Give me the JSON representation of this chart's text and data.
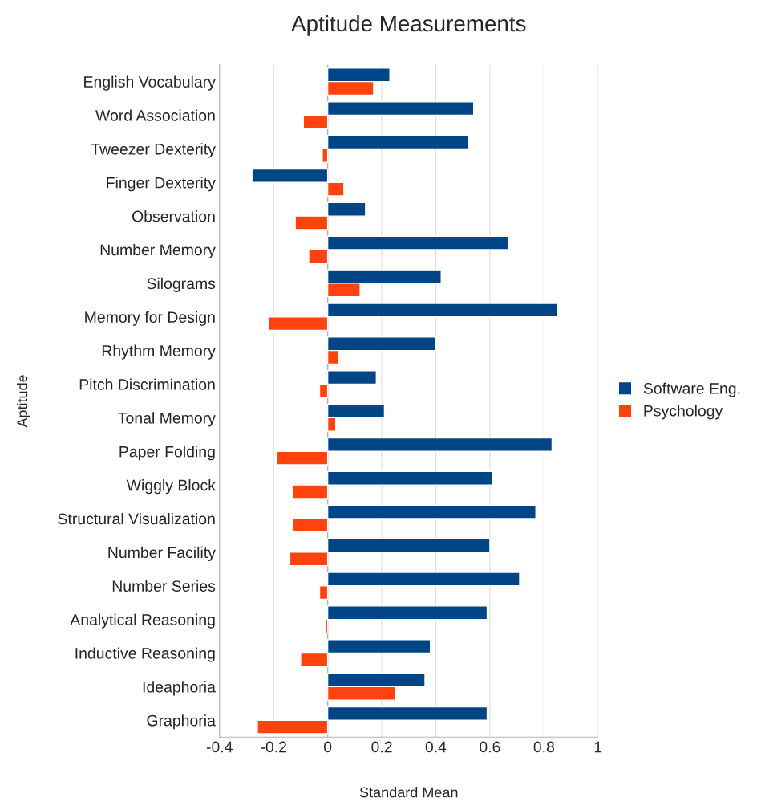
{
  "chart_data": {
    "type": "bar",
    "orientation": "horizontal",
    "title": "Aptitude Measurements",
    "xlabel": "Standard Mean",
    "ylabel": "Aptitude",
    "categories": [
      "English Vocabulary",
      "Word Association",
      "Tweezer Dexterity",
      "Finger Dexterity",
      "Observation",
      "Number Memory",
      "Silograms",
      "Memory for Design",
      "Rhythm Memory",
      "Pitch Discrimination",
      "Tonal Memory",
      "Paper Folding",
      "Wiggly Block",
      "Structural Visualization",
      "Number Facility",
      "Number Series",
      "Analytical Reasoning",
      "Inductive Reasoning",
      "Ideaphoria",
      "Graphoria"
    ],
    "series": [
      {
        "name": "Software Eng.",
        "color": "#004586",
        "values": [
          0.23,
          0.54,
          0.52,
          -0.28,
          0.14,
          0.67,
          0.42,
          0.85,
          0.4,
          0.18,
          0.21,
          0.83,
          0.61,
          0.77,
          0.6,
          0.71,
          0.59,
          0.38,
          0.36,
          0.59
        ]
      },
      {
        "name": "Psychology",
        "color": "#ff420e",
        "values": [
          0.17,
          -0.09,
          -0.02,
          0.06,
          -0.12,
          -0.07,
          0.12,
          -0.22,
          0.04,
          -0.03,
          0.03,
          -0.19,
          -0.13,
          -0.13,
          -0.14,
          -0.03,
          -0.01,
          -0.1,
          0.25,
          -0.26
        ]
      }
    ],
    "xlim": [
      -0.4,
      1
    ],
    "xticks": [
      -0.4,
      -0.2,
      0,
      0.2,
      0.4,
      0.6,
      0.8,
      1
    ],
    "grid": "x",
    "legend": "right"
  }
}
